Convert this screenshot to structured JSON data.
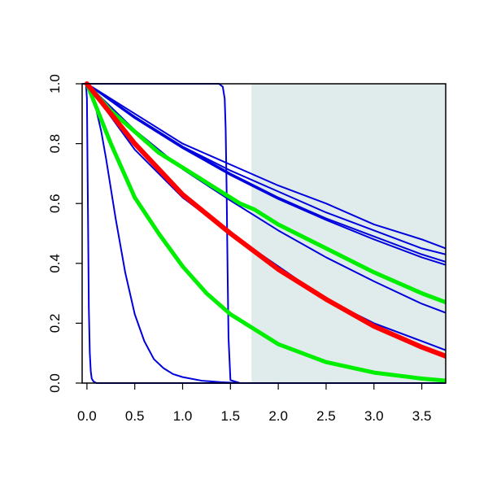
{
  "chart_data": {
    "type": "line",
    "title": "",
    "xlabel": "",
    "ylabel": "",
    "xlim": [
      -0.05,
      3.75
    ],
    "ylim": [
      0,
      1
    ],
    "xticks": [
      0.0,
      0.5,
      1.0,
      1.5,
      2.0,
      2.5,
      3.0,
      3.5
    ],
    "xtick_labels": [
      "0.0",
      "0.5",
      "1.0",
      "1.5",
      "2.0",
      "2.5",
      "3.0",
      "3.5"
    ],
    "yticks": [
      0.0,
      0.2,
      0.4,
      0.6,
      0.8,
      1.0
    ],
    "ytick_labels": [
      "0.0",
      "0.2",
      "0.4",
      "0.6",
      "0.8",
      "1.0"
    ],
    "grid": false,
    "legend": "none",
    "shaded_region": {
      "x_start": 1.72,
      "x_end": 3.75,
      "color": "#e0ecec"
    },
    "series": [
      {
        "color": "#0000dd",
        "width": 2,
        "x": [
          0,
          0.5,
          1.0,
          1.5,
          2.0,
          2.5,
          3.0,
          3.5,
          3.75
        ],
        "y": [
          1,
          0.9,
          0.8,
          0.73,
          0.66,
          0.6,
          0.53,
          0.48,
          0.45
        ]
      },
      {
        "color": "#0000dd",
        "width": 2,
        "x": [
          0,
          0.5,
          1.0,
          1.5,
          2.0,
          2.5,
          3.0,
          3.5,
          3.75
        ],
        "y": [
          1,
          0.89,
          0.79,
          0.71,
          0.64,
          0.57,
          0.51,
          0.45,
          0.43
        ]
      },
      {
        "color": "#0000dd",
        "width": 2,
        "x": [
          0,
          0.5,
          1.0,
          1.5,
          2.0,
          2.5,
          3.0,
          3.5,
          3.75
        ],
        "y": [
          1,
          0.89,
          0.79,
          0.7,
          0.62,
          0.55,
          0.49,
          0.43,
          0.405
        ]
      },
      {
        "color": "#0000dd",
        "width": 2,
        "x": [
          0,
          0.5,
          1.0,
          1.5,
          2.0,
          2.5,
          3.0,
          3.5,
          3.75
        ],
        "y": [
          1,
          0.885,
          0.785,
          0.695,
          0.615,
          0.545,
          0.48,
          0.42,
          0.395
        ]
      },
      {
        "color": "#0000dd",
        "width": 2,
        "x": [
          0,
          0.5,
          1.0,
          1.5,
          2.0,
          2.5,
          3.0,
          3.5,
          3.75
        ],
        "y": [
          1,
          0.845,
          0.715,
          0.61,
          0.51,
          0.42,
          0.34,
          0.265,
          0.235
        ]
      },
      {
        "color": "#0000dd",
        "width": 2,
        "x": [
          0,
          0.5,
          1.0,
          1.5,
          2.0,
          2.5,
          3.0,
          3.5,
          3.75
        ],
        "y": [
          1,
          0.78,
          0.62,
          0.5,
          0.39,
          0.28,
          0.2,
          0.14,
          0.11
        ]
      },
      {
        "color": "#0000dd",
        "width": 2,
        "x": [
          0,
          0.05,
          0.1,
          0.15,
          0.2,
          0.3,
          0.4,
          0.5,
          0.6,
          0.7,
          0.8,
          0.9,
          1.0,
          1.2,
          1.4,
          1.6,
          3.75
        ],
        "y": [
          1,
          0.97,
          0.91,
          0.84,
          0.75,
          0.55,
          0.37,
          0.23,
          0.14,
          0.08,
          0.05,
          0.03,
          0.02,
          0.008,
          0.003,
          0.0,
          0.0
        ]
      },
      {
        "color": "#0000dd",
        "width": 2,
        "x": [
          0,
          1.0,
          1.3,
          1.38,
          1.42,
          1.44,
          1.45,
          1.46,
          1.47,
          1.48,
          1.5,
          1.6,
          3.75
        ],
        "y": [
          1,
          1,
          1,
          1,
          0.99,
          0.95,
          0.85,
          0.65,
          0.38,
          0.15,
          0.01,
          0.0,
          0.0
        ]
      },
      {
        "color": "#0000dd",
        "width": 2,
        "x": [
          -0.05,
          -0.01,
          0.0,
          0.01,
          0.02,
          0.03,
          0.04,
          0.05,
          0.07,
          0.1,
          3.75
        ],
        "y": [
          1,
          1,
          0.95,
          0.6,
          0.25,
          0.1,
          0.04,
          0.015,
          0.005,
          0.0,
          0.0
        ]
      },
      {
        "color": "#00ee00",
        "width": 5,
        "x": [
          0,
          0.25,
          0.5,
          0.75,
          1.0,
          1.25,
          1.5,
          1.6,
          1.75,
          2.0,
          2.5,
          3.0,
          3.5,
          3.75
        ],
        "y": [
          1,
          0.91,
          0.84,
          0.77,
          0.72,
          0.67,
          0.62,
          0.6,
          0.58,
          0.53,
          0.45,
          0.37,
          0.3,
          0.27
        ]
      },
      {
        "color": "#00ee00",
        "width": 5,
        "x": [
          0,
          0.1,
          0.25,
          0.5,
          0.75,
          1.0,
          1.25,
          1.5,
          2.0,
          2.5,
          3.0,
          3.5,
          3.75
        ],
        "y": [
          1,
          0.92,
          0.8,
          0.62,
          0.5,
          0.39,
          0.3,
          0.23,
          0.13,
          0.07,
          0.035,
          0.015,
          0.008
        ]
      },
      {
        "color": "#ff0000",
        "width": 6,
        "x": [
          0,
          0.5,
          1.0,
          1.5,
          2.0,
          2.5,
          3.0,
          3.5,
          3.75
        ],
        "y": [
          1,
          0.8,
          0.63,
          0.5,
          0.38,
          0.28,
          0.19,
          0.12,
          0.09
        ]
      }
    ]
  }
}
